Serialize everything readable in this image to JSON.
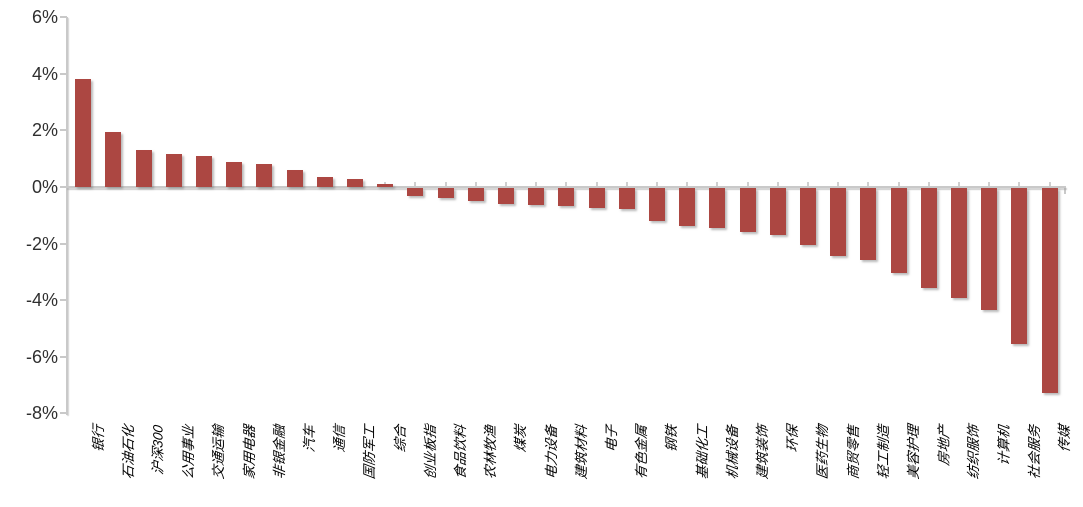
{
  "chart_data": {
    "type": "bar",
    "title": "",
    "xlabel": "",
    "ylabel": "",
    "categories": [
      "银行",
      "石油石化",
      "沪深300",
      "公用事业",
      "交通运输",
      "家用电器",
      "非银金融",
      "汽车",
      "通信",
      "国防军工",
      "综合",
      "创业板指",
      "食品饮料",
      "农林牧渔",
      "煤炭",
      "电力设备",
      "建筑材料",
      "电子",
      "有色金属",
      "钢铁",
      "基础化工",
      "机械设备",
      "建筑装饰",
      "环保",
      "医药生物",
      "商贸零售",
      "轻工制造",
      "美容护理",
      "房地产",
      "纺织服饰",
      "计算机",
      "社会服务",
      "传媒"
    ],
    "values": [
      3.8,
      1.95,
      1.3,
      1.15,
      1.1,
      0.9,
      0.8,
      0.6,
      0.35,
      0.3,
      0.1,
      -0.3,
      -0.35,
      -0.45,
      -0.55,
      -0.6,
      -0.65,
      -0.7,
      -0.75,
      -1.15,
      -1.35,
      -1.4,
      -1.55,
      -1.65,
      -2.0,
      -2.4,
      -2.55,
      -3.0,
      -3.55,
      -3.9,
      -4.3,
      -5.5,
      -7.25
    ],
    "unit": "%",
    "y_ticks": [
      {
        "label": "6%",
        "value": 6
      },
      {
        "label": "4%",
        "value": 4
      },
      {
        "label": "2%",
        "value": 2
      },
      {
        "label": "0%",
        "value": 0
      },
      {
        "label": "-2%",
        "value": -2
      },
      {
        "label": "-4%",
        "value": -4
      },
      {
        "label": "-6%",
        "value": -6
      },
      {
        "label": "-8%",
        "value": -8
      }
    ],
    "ylim": [
      -8,
      6
    ],
    "grid": false,
    "legend": null,
    "x_label_rotation": -90,
    "x_label_style": "italic",
    "colors": {
      "bar": "#ac4742",
      "axis": "#c9c9c9",
      "tick_text": "#2f2f2f",
      "x_label_text": "#000000",
      "background": "#ffffff"
    }
  }
}
